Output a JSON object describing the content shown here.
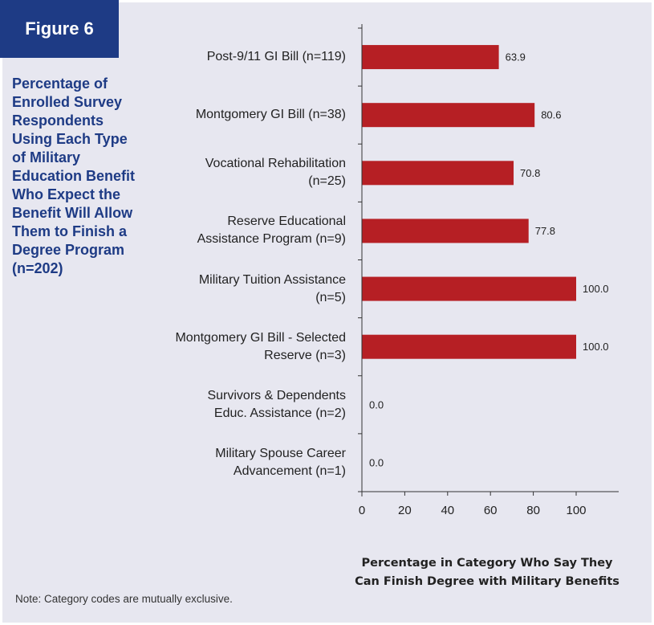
{
  "figure": {
    "badge": "Figure 6",
    "caption": "Percentage of\nEnrolled Survey\nRespondents\nUsing Each Type\nof Military\nEducation Benefit\nWho Expect the\nBenefit Will Allow\nThem to Finish a\nDegree Program\n(n=202)"
  },
  "note": "Note: Category codes are mutually exclusive.",
  "colors": {
    "bar": "#b61f24",
    "badge": "#1e3b85",
    "panel": "#e7e7f0"
  },
  "chart_data": {
    "type": "bar",
    "orientation": "horizontal",
    "categories": [
      "Post-9/11 GI Bill (n=119)",
      "Montgomery GI Bill (n=38)",
      "Vocational Rehabilitation\n(n=25)",
      "Reserve Educational\nAssistance Program (n=9)",
      "Military Tuition Assistance\n(n=5)",
      "Montgomery GI Bill - Selected\nReserve (n=3)",
      "Survivors & Dependents\nEduc. Assistance (n=2)",
      "Military Spouse Career\nAdvancement (n=1)"
    ],
    "values": [
      63.9,
      80.6,
      70.8,
      77.8,
      100.0,
      100.0,
      0.0,
      0.0
    ],
    "data_labels": [
      "63.9",
      "80.6",
      "70.8",
      "77.8",
      "100.0",
      "100.0",
      "0.0",
      "0.0"
    ],
    "xlim": [
      0,
      100
    ],
    "xticks": [
      "0",
      "20",
      "40",
      "60",
      "80",
      "100"
    ],
    "xlabel": "Percentage in Category Who Say They\nCan Finish Degree with Military Benefits",
    "grid": false
  }
}
